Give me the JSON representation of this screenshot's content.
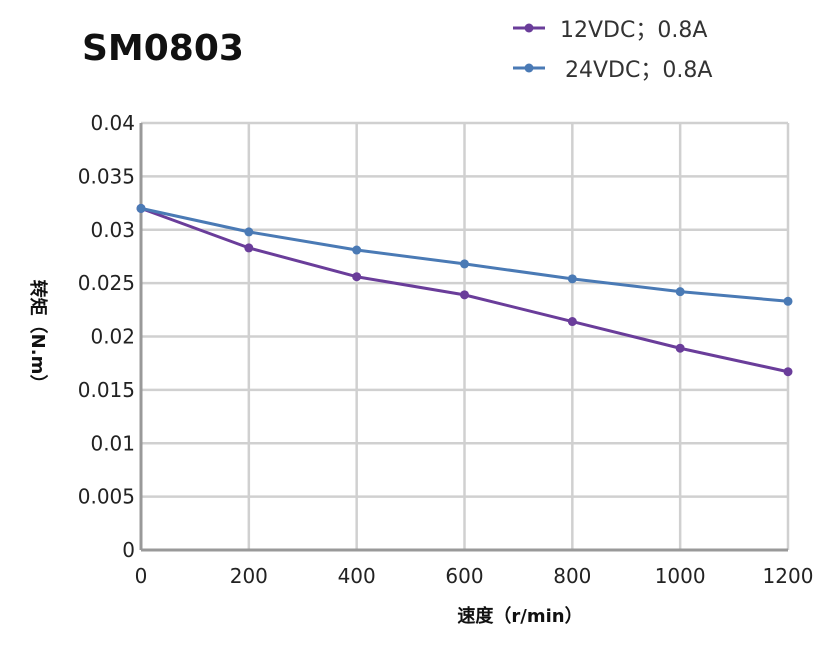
{
  "chart_data": {
    "type": "line",
    "title": "SM0803",
    "xlabel": "速度（r/min）",
    "ylabel": "转矩（N.m）",
    "x": [
      0,
      200,
      400,
      600,
      800,
      1000,
      1200
    ],
    "xlim": [
      0,
      1200
    ],
    "ylim": [
      0,
      0.04
    ],
    "xticks": [
      "0",
      "200",
      "400",
      "600",
      "800",
      "1000",
      "1200"
    ],
    "yticks": [
      "0",
      "0.005",
      "0.01",
      "0.015",
      "0.02",
      "0.025",
      "0.03",
      "0.035",
      "0.04"
    ],
    "grid": true,
    "legend_position": "top-right",
    "series": [
      {
        "name": "12VDC；0.8A",
        "color": "#6a3d9a",
        "values": [
          0.032,
          0.0283,
          0.0256,
          0.0239,
          0.0214,
          0.0189,
          0.0167
        ]
      },
      {
        "name": "24VDC；0.8A",
        "color": "#4a7ab5",
        "values": [
          0.032,
          0.0298,
          0.0281,
          0.0268,
          0.0254,
          0.0242,
          0.0233
        ]
      }
    ]
  }
}
